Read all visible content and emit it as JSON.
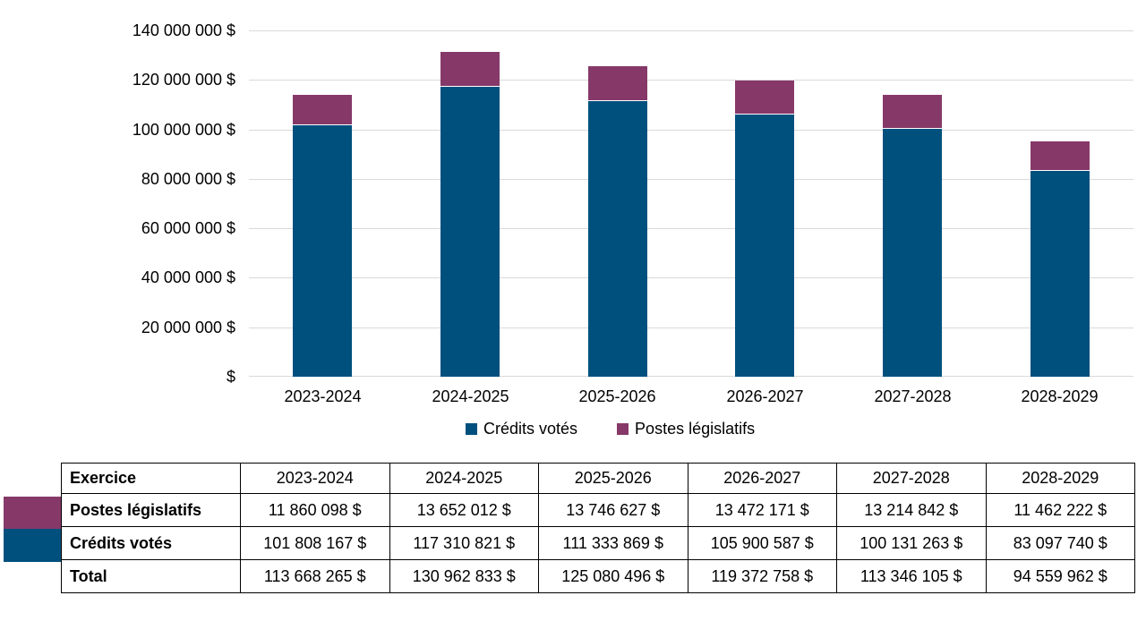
{
  "chart_data": {
    "type": "bar",
    "stacked": true,
    "title": "",
    "xlabel": "",
    "ylabel": "",
    "categories": [
      "2023-2024",
      "2024-2025",
      "2025-2026",
      "2026-2027",
      "2027-2028",
      "2028-2029"
    ],
    "series": [
      {
        "name": "Crédits votés",
        "color": "#00507E",
        "values": [
          101808167,
          117310821,
          111333869,
          105900587,
          100131263,
          83097740
        ]
      },
      {
        "name": "Postes législatifs",
        "color": "#863968",
        "values": [
          11860098,
          13652012,
          13746627,
          13472171,
          13214842,
          11462222
        ]
      }
    ],
    "totals": [
      113668265,
      130962833,
      125080496,
      119372758,
      113346105,
      94559962
    ],
    "ylim": [
      0,
      140000000
    ],
    "y_tick_step": 20000000,
    "y_tick_labels": [
      "140 000 000 $",
      "120 000 000 $",
      "100 000 000 $",
      "80 000 000 $",
      "60 000 000 $",
      "40 000 000 $",
      "20 000 000 $",
      "$"
    ],
    "grid": true,
    "gridline_color": "#D9D9D9",
    "legend_position": "bottom"
  },
  "table": {
    "header": [
      "Exercice",
      "2023-2024",
      "2024-2025",
      "2025-2026",
      "2026-2027",
      "2027-2028",
      "2028-2029"
    ],
    "rows": [
      {
        "label": "Postes législatifs",
        "swatch": "#863968",
        "values": [
          "11 860 098 $",
          "13 652 012 $",
          "13 746 627 $",
          "13 472 171 $",
          "13 214 842 $",
          "11 462 222 $"
        ]
      },
      {
        "label": "Crédits votés",
        "swatch": "#00507E",
        "values": [
          "101 808 167 $",
          "117 310 821 $",
          "111 333 869 $",
          "105 900 587 $",
          "100 131 263 $",
          "83 097 740 $"
        ]
      },
      {
        "label": "Total",
        "swatch": null,
        "values": [
          "113 668 265 $",
          "130 962 833 $",
          "125 080 496 $",
          "119 372 758 $",
          "113 346 105 $",
          "94 559 962 $"
        ]
      }
    ]
  }
}
